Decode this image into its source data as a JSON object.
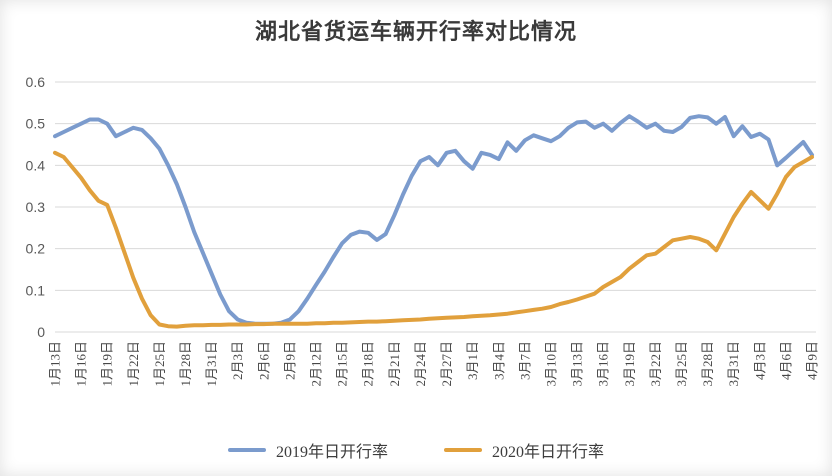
{
  "page": {
    "title": "湖北省货运车辆开行率对比情况"
  },
  "colors": {
    "series_2019": "#7B9BCD",
    "series_2020": "#E1A03C",
    "gridline": "#D9D9D9",
    "tick_text": "#595959",
    "title_text": "#3A3A3A",
    "background": "#FFFFFF"
  },
  "legend": {
    "items": [
      {
        "label": "2019年日开行率",
        "color_key": "series_2019"
      },
      {
        "label": "2020年日开行率",
        "color_key": "series_2020"
      }
    ]
  },
  "chart_data": {
    "type": "line",
    "title": "湖北省货运车辆开行率对比情况",
    "xlabel": "",
    "ylabel": "",
    "ylim": [
      0,
      0.6
    ],
    "y_ticks": [
      0,
      0.1,
      0.2,
      0.3,
      0.4,
      0.5,
      0.6
    ],
    "y_tick_labels": [
      "0",
      "0.1",
      "0.2",
      "0.3",
      "0.4",
      "0.5",
      "0.6"
    ],
    "grid": "horizontal",
    "legend_position": "bottom",
    "n_points": 88,
    "x_tick_interval": 3,
    "x_tick_labels": [
      "1月13日",
      "1月16日",
      "1月19日",
      "1月22日",
      "1月25日",
      "1月28日",
      "1月31日",
      "2月3日",
      "2月6日",
      "2月9日",
      "2月12日",
      "2月15日",
      "2月18日",
      "2月21日",
      "2月24日",
      "2月27日",
      "3月1日",
      "3月4日",
      "3月7日",
      "3月10日",
      "3月13日",
      "3月16日",
      "3月19日",
      "3月22日",
      "3月25日",
      "3月28日",
      "3月31日",
      "4月3日",
      "4月6日",
      "4月9日"
    ],
    "series": [
      {
        "name": "2019年日开行率",
        "values": [
          0.47,
          0.48,
          0.49,
          0.5,
          0.51,
          0.51,
          0.5,
          0.47,
          0.48,
          0.49,
          0.485,
          0.465,
          0.44,
          0.4,
          0.355,
          0.3,
          0.24,
          0.19,
          0.14,
          0.09,
          0.05,
          0.03,
          0.022,
          0.02,
          0.02,
          0.02,
          0.022,
          0.03,
          0.05,
          0.08,
          0.113,
          0.145,
          0.18,
          0.213,
          0.233,
          0.241,
          0.238,
          0.221,
          0.235,
          0.28,
          0.33,
          0.375,
          0.41,
          0.42,
          0.4,
          0.43,
          0.435,
          0.41,
          0.392,
          0.43,
          0.425,
          0.415,
          0.455,
          0.435,
          0.46,
          0.472,
          0.465,
          0.458,
          0.47,
          0.49,
          0.503,
          0.505,
          0.49,
          0.5,
          0.483,
          0.502,
          0.518,
          0.505,
          0.49,
          0.5,
          0.483,
          0.48,
          0.492,
          0.514,
          0.518,
          0.515,
          0.5,
          0.516,
          0.47,
          0.494,
          0.468,
          0.476,
          0.462,
          0.4,
          0.418,
          0.437,
          0.456,
          0.425
        ]
      },
      {
        "name": "2020年日开行率",
        "values": [
          0.43,
          0.42,
          0.395,
          0.37,
          0.34,
          0.315,
          0.305,
          0.25,
          0.19,
          0.13,
          0.08,
          0.04,
          0.018,
          0.014,
          0.013,
          0.015,
          0.016,
          0.016,
          0.017,
          0.017,
          0.018,
          0.018,
          0.018,
          0.019,
          0.019,
          0.02,
          0.02,
          0.02,
          0.02,
          0.02,
          0.021,
          0.021,
          0.022,
          0.022,
          0.023,
          0.024,
          0.025,
          0.025,
          0.026,
          0.027,
          0.028,
          0.029,
          0.03,
          0.032,
          0.033,
          0.034,
          0.035,
          0.036,
          0.038,
          0.039,
          0.04,
          0.042,
          0.044,
          0.047,
          0.05,
          0.053,
          0.056,
          0.06,
          0.067,
          0.072,
          0.078,
          0.085,
          0.092,
          0.108,
          0.12,
          0.132,
          0.152,
          0.168,
          0.184,
          0.188,
          0.204,
          0.22,
          0.224,
          0.228,
          0.224,
          0.216,
          0.196,
          0.236,
          0.276,
          0.308,
          0.336,
          0.316,
          0.296,
          0.332,
          0.372,
          0.396,
          0.408,
          0.42
        ]
      }
    ]
  }
}
